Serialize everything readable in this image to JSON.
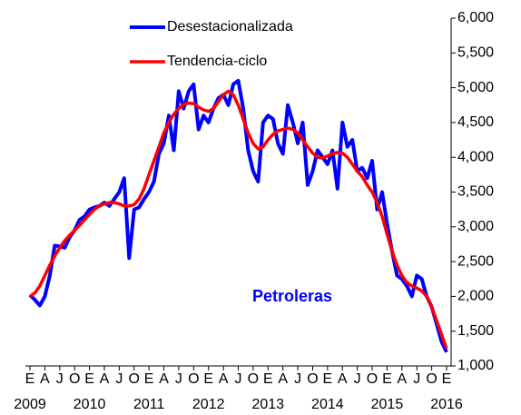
{
  "chart_data": {
    "type": "line",
    "annotation": "Petroleras",
    "categories": [
      "E",
      null,
      null,
      "A",
      null,
      null,
      "J",
      null,
      null,
      "O",
      null,
      null,
      "E",
      null,
      null,
      "A",
      null,
      null,
      "J",
      null,
      null,
      "O",
      null,
      null,
      "E",
      null,
      null,
      "A",
      null,
      null,
      "J",
      null,
      null,
      "O",
      null,
      null,
      "E",
      null,
      null,
      "A",
      null,
      null,
      "J",
      null,
      null,
      "O",
      null,
      null,
      "E",
      null,
      null,
      "A",
      null,
      null,
      "J",
      null,
      null,
      "O",
      null,
      null,
      "E",
      null,
      null,
      "A",
      null,
      null,
      "J",
      null,
      null,
      "O",
      null,
      null,
      "E",
      null,
      null,
      "A",
      null,
      null,
      "J",
      null,
      null,
      "O",
      null,
      null,
      "E"
    ],
    "years": [
      "2009",
      "2010",
      "2011",
      "2012",
      "2013",
      "2014",
      "2015",
      "2016"
    ],
    "series": [
      {
        "name": "Desestacionalizada",
        "color": "#0000ff",
        "width": 4,
        "values": [
          2020,
          1950,
          1870,
          2000,
          2300,
          2730,
          2720,
          2700,
          2850,
          2950,
          3100,
          3150,
          3250,
          3280,
          3300,
          3350,
          3300,
          3400,
          3500,
          3700,
          2550,
          3250,
          3280,
          3400,
          3500,
          3650,
          4050,
          4200,
          4600,
          4100,
          4950,
          4700,
          4950,
          5050,
          4400,
          4600,
          4500,
          4700,
          4850,
          4900,
          4750,
          5050,
          5100,
          4700,
          4100,
          3800,
          3650,
          4500,
          4600,
          4550,
          4200,
          4050,
          4750,
          4500,
          4200,
          4500,
          3600,
          3800,
          4100,
          4000,
          3900,
          4100,
          3550,
          4500,
          4150,
          4250,
          3800,
          3850,
          3700,
          3950,
          3250,
          3500,
          3050,
          2650,
          2300,
          2250,
          2150,
          2000,
          2300,
          2250,
          2000,
          1850,
          1600,
          1350,
          1200
        ]
      },
      {
        "name": "Tendencia-ciclo",
        "color": "#ff0000",
        "width": 3.5,
        "values": [
          2000,
          2050,
          2150,
          2300,
          2450,
          2580,
          2700,
          2800,
          2880,
          2950,
          3020,
          3100,
          3180,
          3250,
          3300,
          3330,
          3350,
          3350,
          3330,
          3300,
          3300,
          3320,
          3400,
          3550,
          3750,
          3950,
          4150,
          4350,
          4500,
          4620,
          4700,
          4760,
          4780,
          4770,
          4720,
          4680,
          4660,
          4700,
          4800,
          4900,
          4950,
          4900,
          4750,
          4550,
          4350,
          4200,
          4120,
          4150,
          4250,
          4330,
          4380,
          4400,
          4420,
          4400,
          4350,
          4250,
          4150,
          4060,
          4000,
          3990,
          4020,
          4050,
          4070,
          4060,
          4000,
          3900,
          3800,
          3720,
          3600,
          3500,
          3350,
          3150,
          2900,
          2650,
          2450,
          2300,
          2200,
          2150,
          2120,
          2080,
          2000,
          1850,
          1650,
          1450,
          1250
        ]
      }
    ],
    "ylim": [
      1000,
      6000
    ],
    "yticks": [
      {
        "value": 1000,
        "label": "1,000"
      },
      {
        "value": 1500,
        "label": "1,500"
      },
      {
        "value": 2000,
        "label": "2,000"
      },
      {
        "value": 2500,
        "label": "2,500"
      },
      {
        "value": 3000,
        "label": "3,000"
      },
      {
        "value": 3500,
        "label": "3,500"
      },
      {
        "value": 4000,
        "label": "4,000"
      },
      {
        "value": 4500,
        "label": "4,500"
      },
      {
        "value": 5000,
        "label": "5,000"
      },
      {
        "value": 5500,
        "label": "5,500"
      },
      {
        "value": 6000,
        "label": "6,000"
      }
    ],
    "y_axis_side": "right",
    "grid": false,
    "legend": "top-left"
  }
}
